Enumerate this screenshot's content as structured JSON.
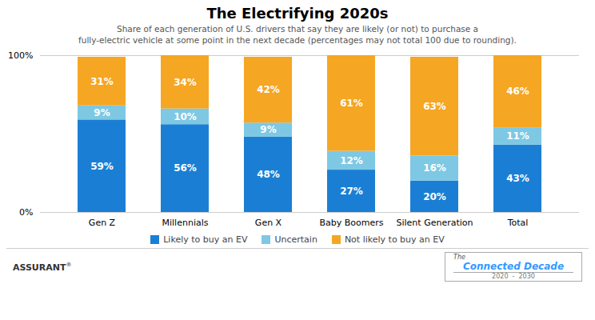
{
  "chart_data": {
    "type": "bar",
    "stacked": true,
    "title": "The Electrifying 2020s",
    "subtitle": "Share of each generation of U.S. drivers that say they are likely (or not) to purchase a\nfully-electric vehicle at some point in the next decade (percentages may not total 100 due to rounding).",
    "categories": [
      "Gen Z",
      "Millennials",
      "Gen X",
      "Baby Boomers",
      "Silent Generation",
      "Total"
    ],
    "series": [
      {
        "name": "Likely to buy an EV",
        "color": "#1a7fd4",
        "values": [
          59,
          56,
          48,
          27,
          20,
          43
        ],
        "value_labels": [
          "59%",
          "56%",
          "48%",
          "27%",
          "20%",
          "43%"
        ]
      },
      {
        "name": "Uncertain",
        "color": "#7ec8e3",
        "values": [
          9,
          10,
          9,
          12,
          16,
          11
        ],
        "value_labels": [
          "9%",
          "10%",
          "9%",
          "12%",
          "16%",
          "11%"
        ]
      },
      {
        "name": "Not likely to buy an EV",
        "color": "#f5a623",
        "values": [
          31,
          34,
          42,
          61,
          63,
          46
        ],
        "value_labels": [
          "31%",
          "34%",
          "42%",
          "61%",
          "63%",
          "46%"
        ]
      }
    ],
    "ylim": [
      0,
      100
    ],
    "yticks": [
      {
        "value": 0,
        "label": "0%"
      },
      {
        "value": 100,
        "label": "100%"
      }
    ],
    "grid": true,
    "data_labels": true,
    "annotations": [
      "ASSURANT",
      "®",
      "The",
      "Connected Decade",
      "2020  -  2030"
    ]
  }
}
